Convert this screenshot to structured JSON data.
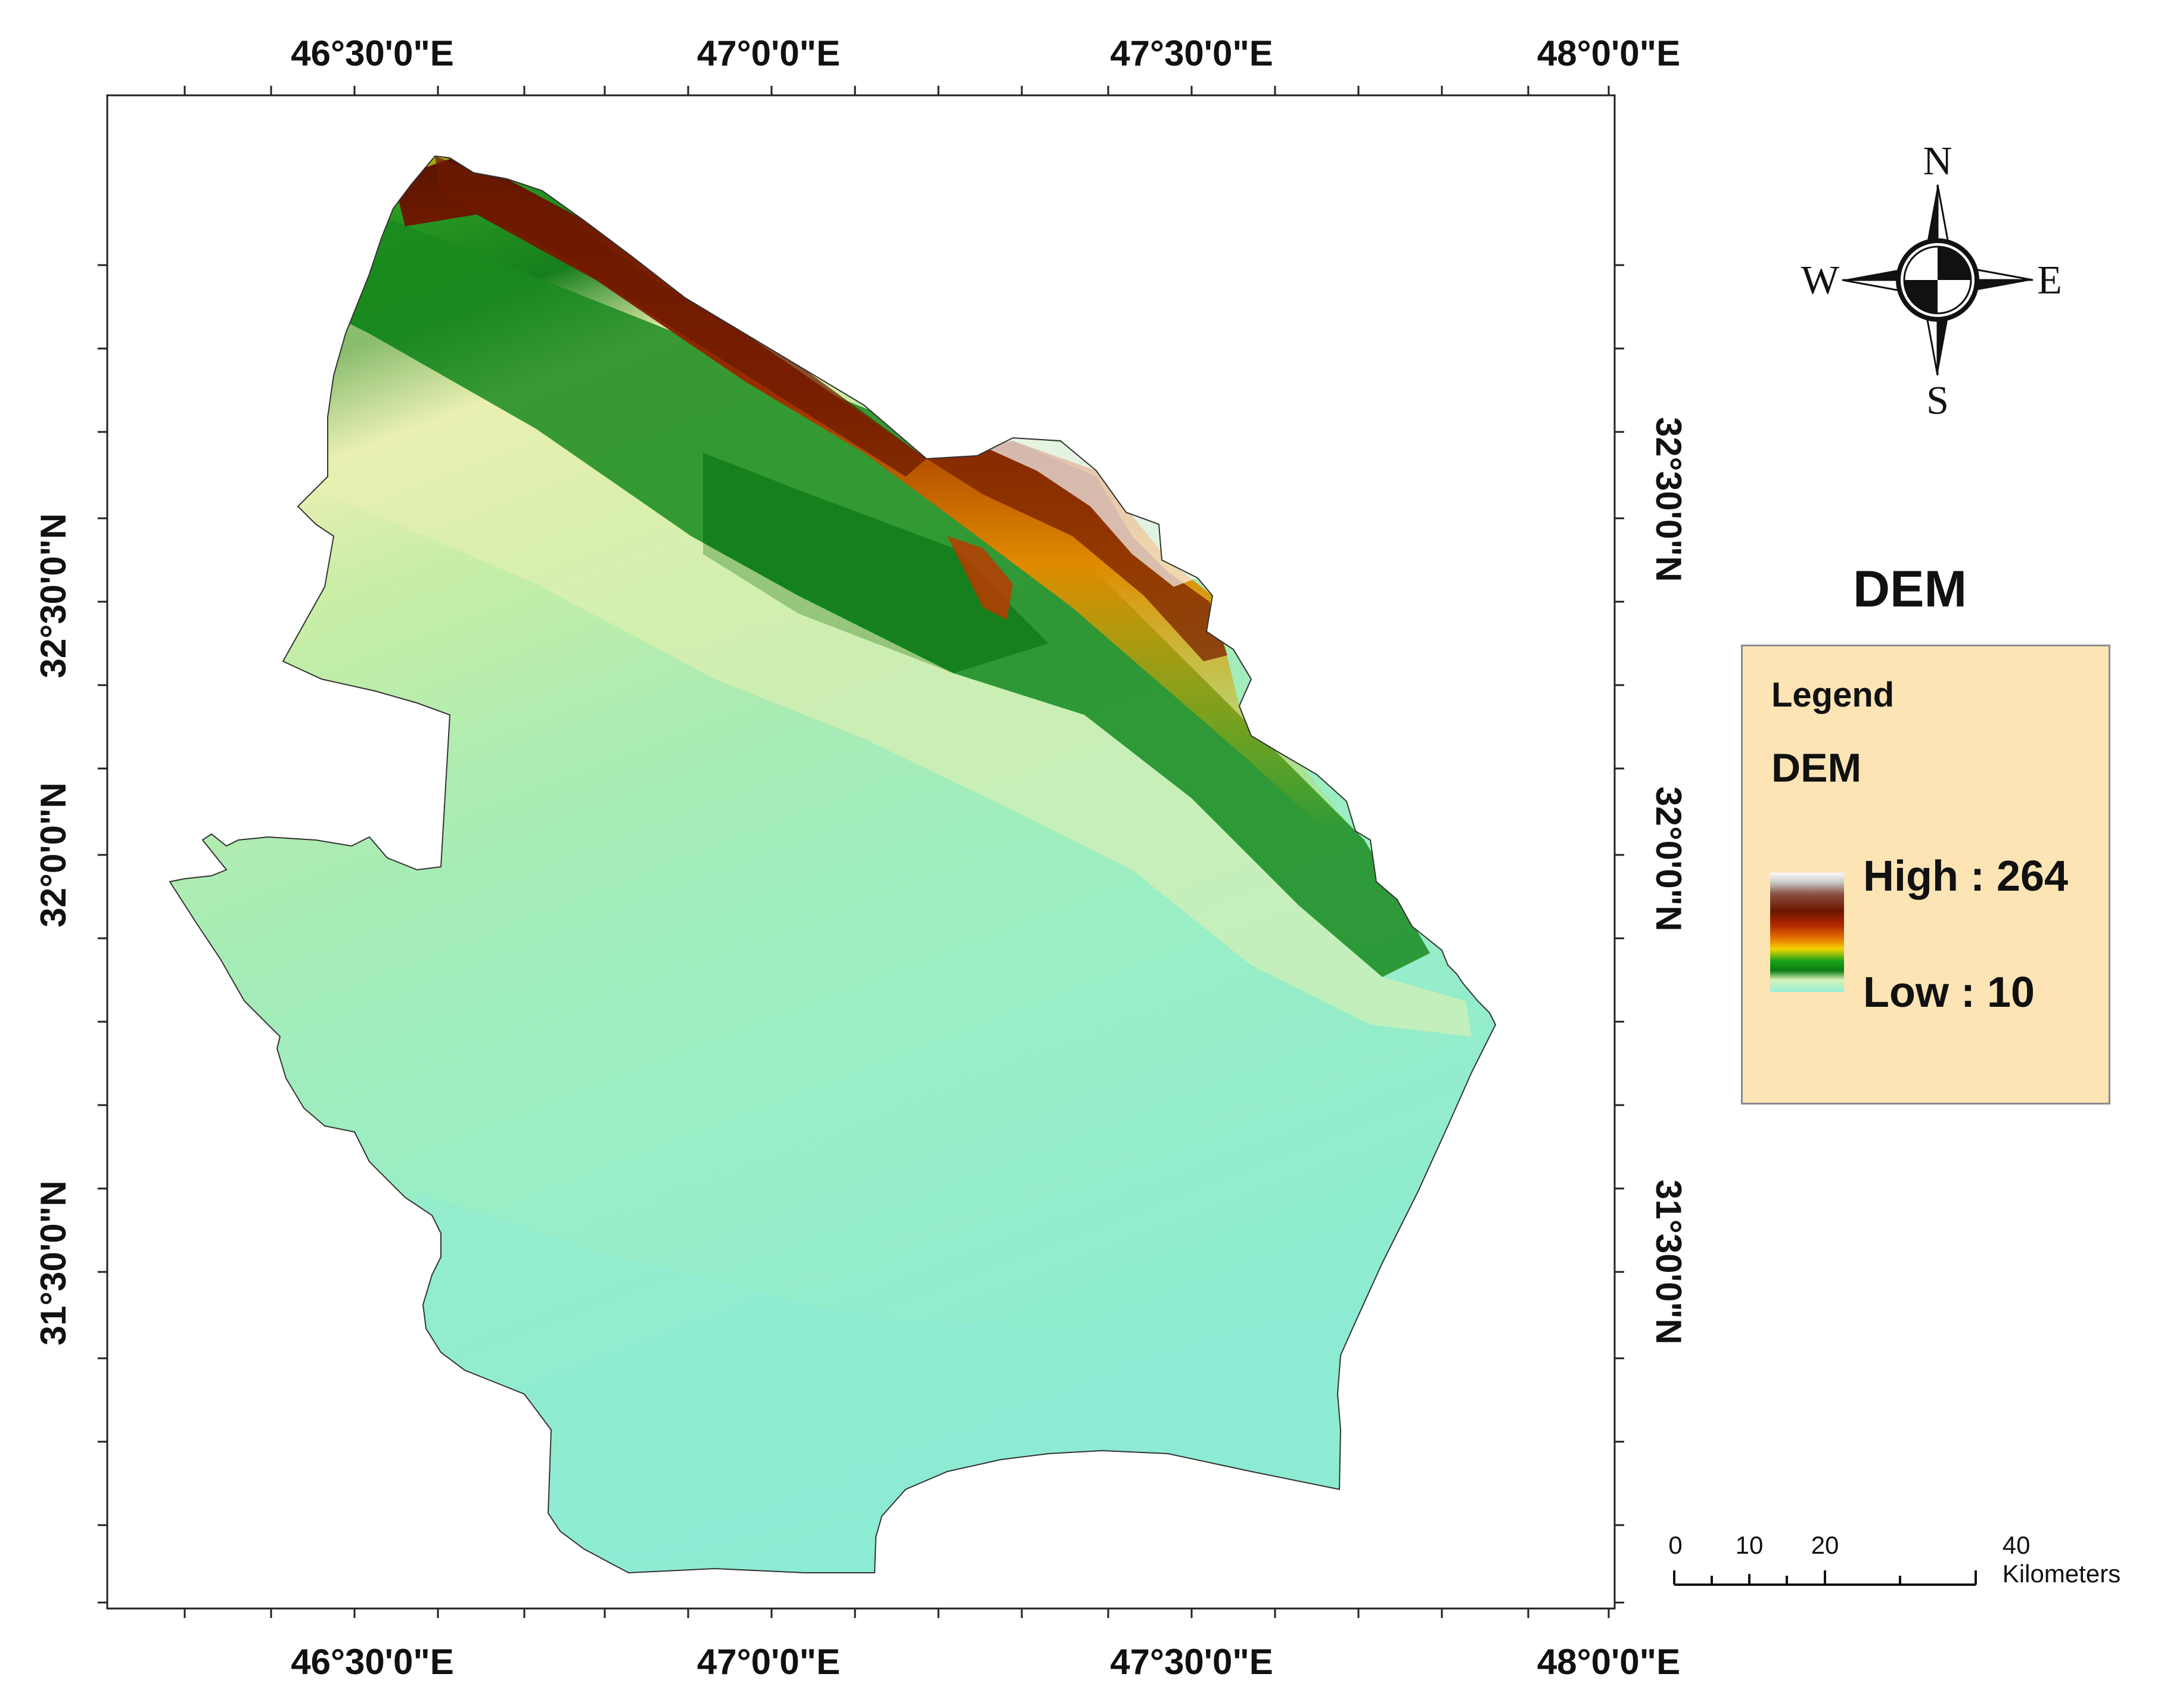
{
  "map": {
    "title": "DEM",
    "longitude_labels": [
      "46°30'0\"E",
      "47°0'0\"E",
      "47°30'0\"E",
      "48°0'0\"E"
    ],
    "latitude_labels": [
      "32°30'0\"N",
      "32°0'0\"N",
      "31°30'0\"N"
    ],
    "legend": {
      "header": "Legend",
      "layer": "DEM",
      "high_label": "High : 264",
      "low_label": "Low :  10",
      "high_value": 264,
      "low_value": 10,
      "colors": [
        "#fafafa",
        "#6b1600",
        "#e87a00",
        "#f2d400",
        "#0b7c12",
        "#d8f2b8",
        "#92f0d5"
      ]
    },
    "north_arrow": {
      "n": "N",
      "s": "S",
      "e": "E",
      "w": "W"
    },
    "scale_bar": {
      "ticks": [
        "0",
        "10",
        "20",
        "40 Kilometers"
      ]
    }
  }
}
